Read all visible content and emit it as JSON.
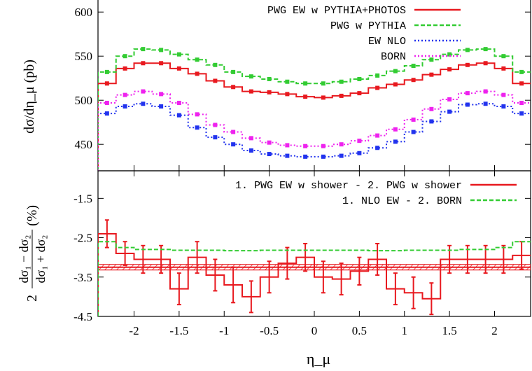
{
  "chart_data": [
    {
      "type": "line",
      "panel": "top",
      "ylabel": "dσ/dη_μ (pb)",
      "xlim": [
        -2.4,
        2.4
      ],
      "ylim": [
        420,
        620
      ],
      "yticks": [
        450,
        500,
        550,
        600
      ],
      "ytick_labels": [
        "450",
        "500",
        "550",
        "600"
      ],
      "legend_position": "top-right",
      "x": [
        -2.3,
        -2.1,
        -1.9,
        -1.7,
        -1.5,
        -1.3,
        -1.1,
        -0.9,
        -0.7,
        -0.5,
        -0.3,
        -0.1,
        0.1,
        0.3,
        0.5,
        0.7,
        0.9,
        1.1,
        1.3,
        1.5,
        1.7,
        1.9,
        2.1,
        2.3
      ],
      "series": [
        {
          "name": "PWG EW w PYTHIA+PHOTOS",
          "color": "#e8191f",
          "dash": "solid",
          "values": [
            519,
            536,
            542,
            542,
            536,
            530,
            522,
            515,
            510,
            509,
            507,
            504,
            503,
            505,
            508,
            514,
            518,
            523,
            529,
            535,
            540,
            542,
            536,
            519
          ]
        },
        {
          "name": "PWG w PYTHIA",
          "color": "#33cc33",
          "dash": "dash",
          "values": [
            532,
            550,
            558,
            557,
            552,
            546,
            540,
            532,
            527,
            524,
            521,
            519,
            519,
            521,
            524,
            528,
            533,
            539,
            546,
            552,
            557,
            558,
            550,
            532
          ]
        },
        {
          "name": "EW NLO",
          "color": "#2233ee",
          "dash": "dot",
          "values": [
            485,
            493,
            496,
            493,
            483,
            469,
            458,
            450,
            443,
            439,
            437,
            436,
            436,
            437,
            440,
            446,
            453,
            464,
            476,
            487,
            495,
            496,
            493,
            485
          ]
        },
        {
          "name": "BORN",
          "color": "#ee22ee",
          "dash": "dot",
          "values": [
            497,
            506,
            510,
            507,
            497,
            484,
            472,
            464,
            457,
            452,
            449,
            448,
            448,
            450,
            454,
            460,
            467,
            478,
            490,
            501,
            508,
            510,
            506,
            497
          ]
        }
      ]
    },
    {
      "type": "line",
      "panel": "bottom",
      "xlabel": "η_μ",
      "ylabel": "2 (dσ1 − dσ2)/(dσ1 + dσ2) (%)",
      "ylabel_num": "dσ₁ − dσ₂",
      "ylabel_den": "dσ₁ + dσ₂",
      "ylabel_prefix": "2",
      "ylabel_suffix": "(%)",
      "xlim": [
        -2.4,
        2.4
      ],
      "ylim": [
        -4.5,
        -0.8
      ],
      "xticks": [
        -2,
        -1.5,
        -1,
        -0.5,
        0,
        0.5,
        1,
        1.5,
        2
      ],
      "xtick_labels": [
        "-2",
        "-1.5",
        "-1",
        "-0.5",
        "0",
        "0.5",
        "1",
        "1.5",
        "2"
      ],
      "yticks": [
        -4.5,
        -3.5,
        -2.5,
        -1.5
      ],
      "ytick_labels": [
        "-4.5",
        "-3.5",
        "-2.5",
        "-1.5"
      ],
      "legend_position": "top-right",
      "x": [
        -2.3,
        -2.1,
        -1.9,
        -1.7,
        -1.5,
        -1.3,
        -1.1,
        -0.9,
        -0.7,
        -0.5,
        -0.3,
        -0.1,
        0.1,
        0.3,
        0.5,
        0.7,
        0.9,
        1.1,
        1.3,
        1.5,
        1.7,
        1.9,
        2.1,
        2.3
      ],
      "series": [
        {
          "name": "1. PWG EW w shower - 2. PWG w shower",
          "color": "#e8191f",
          "dash": "solid",
          "values": [
            -2.4,
            -2.9,
            -3.05,
            -3.05,
            -3.8,
            -3.0,
            -3.45,
            -3.7,
            -4.0,
            -3.5,
            -3.15,
            -3.0,
            -3.5,
            -3.55,
            -3.35,
            -3.05,
            -3.8,
            -3.9,
            -4.05,
            -3.05,
            -3.05,
            -3.05,
            -3.05,
            -2.95
          ],
          "errors": [
            0.35,
            0.3,
            0.35,
            0.35,
            0.4,
            0.4,
            0.4,
            0.45,
            0.4,
            0.4,
            0.4,
            0.35,
            0.4,
            0.4,
            0.35,
            0.4,
            0.4,
            0.4,
            0.4,
            0.35,
            0.35,
            0.35,
            0.35,
            0.35
          ],
          "band": {
            "center": -3.25,
            "low": -3.32,
            "high": -3.18
          }
        },
        {
          "name": "1. NLO EW - 2. BORN",
          "color": "#33cc33",
          "dash": "dash",
          "values": [
            -2.6,
            -2.75,
            -2.8,
            -2.8,
            -2.82,
            -2.82,
            -2.82,
            -2.83,
            -2.83,
            -2.82,
            -2.82,
            -2.82,
            -2.82,
            -2.82,
            -2.82,
            -2.83,
            -2.83,
            -2.82,
            -2.82,
            -2.82,
            -2.8,
            -2.8,
            -2.75,
            -2.6
          ]
        }
      ]
    }
  ]
}
